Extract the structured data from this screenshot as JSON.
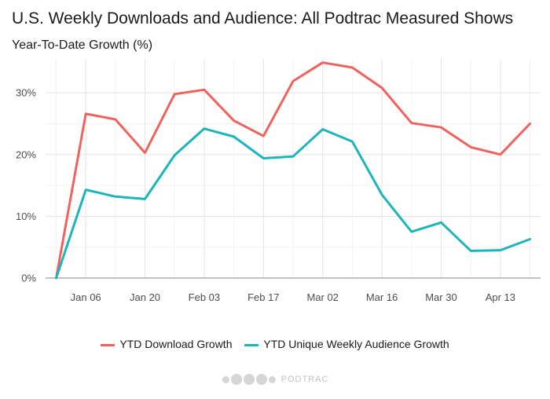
{
  "chart_data": {
    "type": "line",
    "title": "U.S. Weekly Downloads and Audience: All Podtrac Measured Shows",
    "subtitle": "Year-To-Date Growth (%)",
    "xlabel": "",
    "ylabel": "",
    "x": [
      "2019-12-30",
      "2020-01-06",
      "2020-01-13",
      "2020-01-20",
      "2020-01-27",
      "2020-02-03",
      "2020-02-10",
      "2020-02-17",
      "2020-02-24",
      "2020-03-02",
      "2020-03-09",
      "2020-03-16",
      "2020-03-23",
      "2020-03-30",
      "2020-04-06",
      "2020-04-13",
      "2020-04-20"
    ],
    "x_tick_labels": [
      {
        "x": "2020-01-06",
        "label": "Jan 06"
      },
      {
        "x": "2020-01-20",
        "label": "Jan 20"
      },
      {
        "x": "2020-02-03",
        "label": "Feb 03"
      },
      {
        "x": "2020-02-17",
        "label": "Feb 17"
      },
      {
        "x": "2020-03-02",
        "label": "Mar 02"
      },
      {
        "x": "2020-03-16",
        "label": "Mar 16"
      },
      {
        "x": "2020-03-30",
        "label": "Mar 30"
      },
      {
        "x": "2020-04-13",
        "label": "Apr 13"
      }
    ],
    "ylim": [
      0,
      35.5
    ],
    "y_ticks": [
      0,
      10,
      20,
      30
    ],
    "y_tick_labels": [
      "0%",
      "10%",
      "20%",
      "30%"
    ],
    "grid": true,
    "legend_position": "bottom",
    "series": [
      {
        "name": "YTD Download Growth",
        "color": "#F0625E",
        "values": [
          0,
          26.6,
          25.7,
          20.3,
          29.8,
          30.5,
          25.5,
          23.0,
          31.9,
          34.9,
          34.1,
          30.8,
          25.1,
          24.4,
          21.2,
          20.0,
          25.0
        ]
      },
      {
        "name": "YTD Unique Weekly Audience Growth",
        "color": "#1EB5BA",
        "values": [
          0,
          14.3,
          13.2,
          12.8,
          19.9,
          24.2,
          22.9,
          19.4,
          19.7,
          24.1,
          22.1,
          13.5,
          7.5,
          9.0,
          4.4,
          4.5,
          6.3
        ]
      }
    ]
  },
  "footer": {
    "brand": "PODTRAC"
  }
}
